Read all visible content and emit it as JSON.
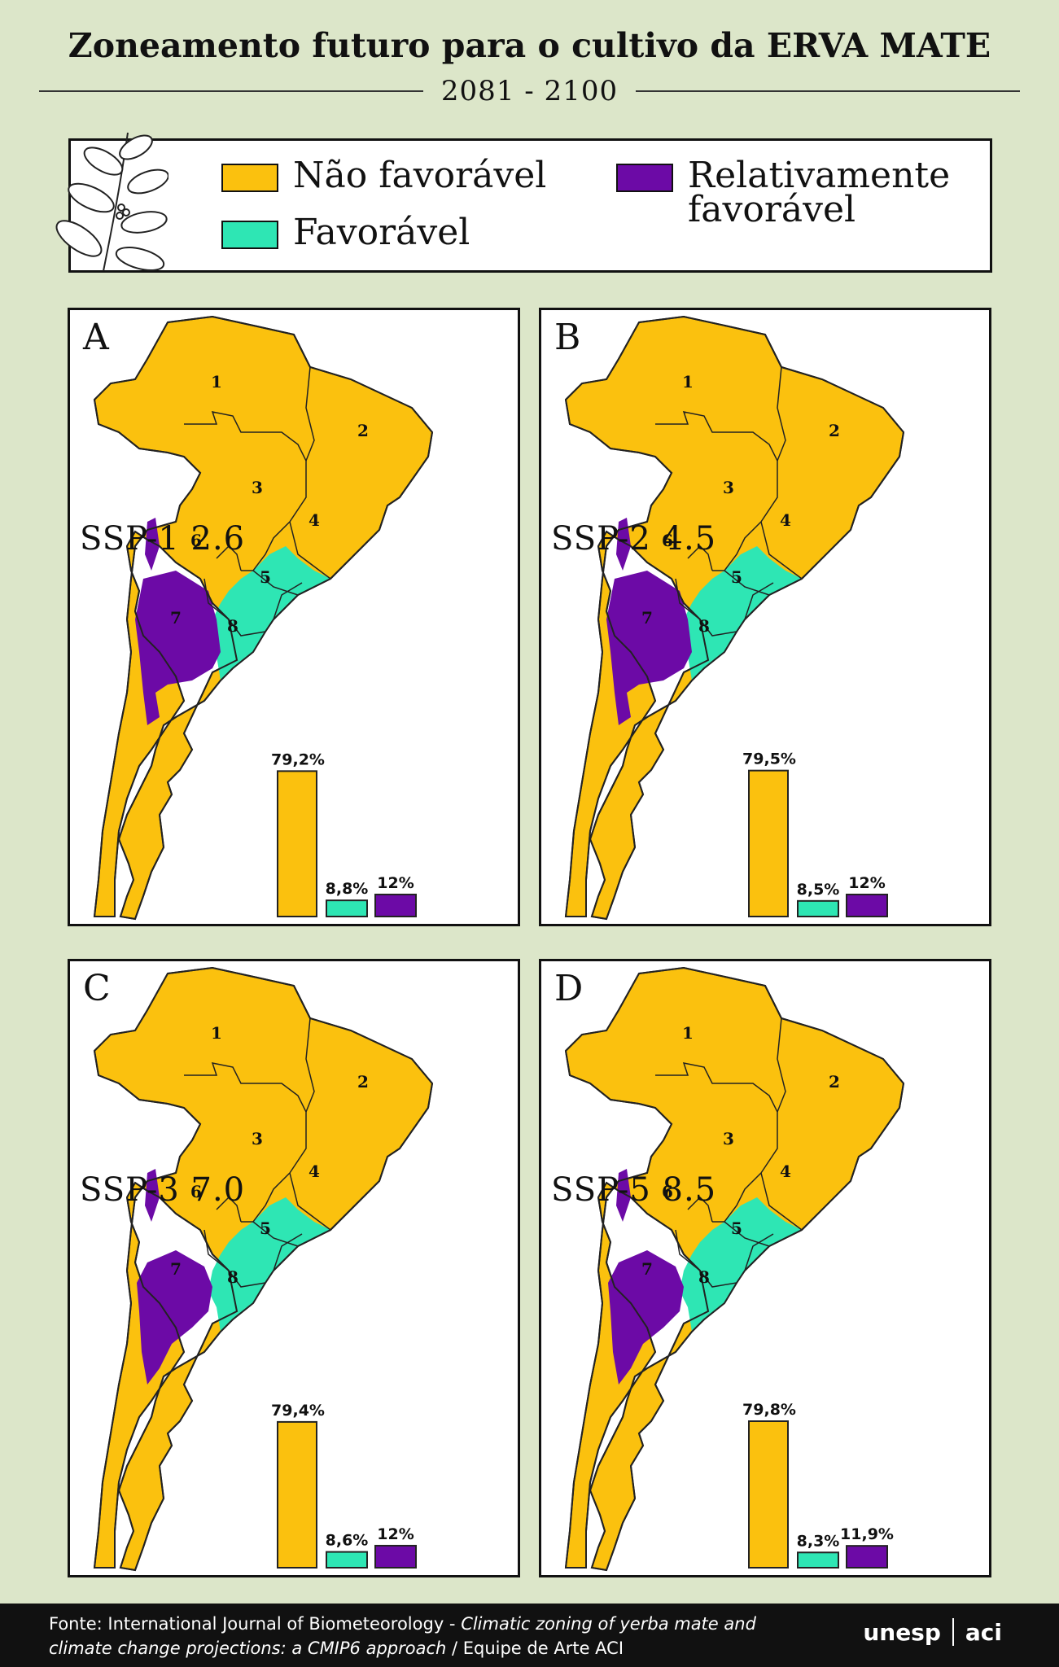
{
  "title": "Zoneamento futuro para o cultivo da ERVA MATE",
  "period": "2081 - 2100",
  "legend": {
    "items": [
      {
        "label": "Não favorável",
        "color": "#fbc10e"
      },
      {
        "label": "Favorável",
        "color": "#2ee6b4"
      },
      {
        "label": "Relativamente favorável",
        "color": "#6c0aa6"
      }
    ]
  },
  "region_numbers": [
    "1",
    "2",
    "3",
    "4",
    "5",
    "6",
    "7",
    "8"
  ],
  "panels": [
    {
      "letter": "A",
      "scenario": "SSP-1 2.6",
      "values": [
        79.2,
        8.8,
        12
      ],
      "labels": [
        "79,2%",
        "8,8%",
        "12%"
      ]
    },
    {
      "letter": "B",
      "scenario": "SSP-2 4.5",
      "values": [
        79.5,
        8.5,
        12
      ],
      "labels": [
        "79,5%",
        "8,5%",
        "12%"
      ]
    },
    {
      "letter": "C",
      "scenario": "SSP-3 7.0",
      "values": [
        79.4,
        8.6,
        12
      ],
      "labels": [
        "79,4%",
        "8,6%",
        "12%"
      ]
    },
    {
      "letter": "D",
      "scenario": "SSP-5 8.5",
      "values": [
        79.8,
        8.3,
        11.9
      ],
      "labels": [
        "79,8%",
        "8,3%",
        "11,9%"
      ]
    }
  ],
  "footer": {
    "source_prefix": "Fonte: International Journal of Biometeorology - ",
    "source_title": "Climatic zoning of yerba mate and climate change projections: a CMIP6 approach",
    "source_suffix": " / Equipe de Arte ACI",
    "logo_unesp": "unesp",
    "logo_aci": "aci"
  }
}
